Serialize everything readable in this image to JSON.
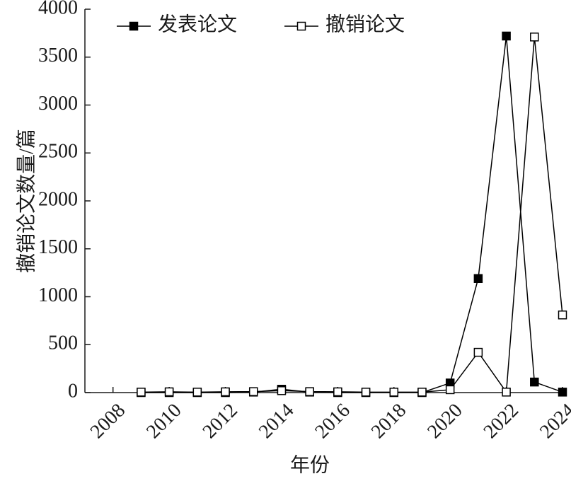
{
  "chart_data": {
    "type": "line",
    "x_label": "年份",
    "y_label": "撤销论文数量/篇",
    "x": [
      2009,
      2010,
      2011,
      2012,
      2013,
      2014,
      2015,
      2016,
      2017,
      2018,
      2019,
      2020,
      2021,
      2022,
      2023,
      2024
    ],
    "series": [
      {
        "name": "发表论文",
        "color": "#000000",
        "marker": "filled",
        "values": [
          0,
          0,
          0,
          0,
          5,
          35,
          5,
          0,
          0,
          0,
          0,
          100,
          1190,
          3720,
          110,
          5
        ]
      },
      {
        "name": "撤销论文",
        "color": "#000000",
        "marker": "hollow",
        "values": [
          5,
          8,
          5,
          8,
          10,
          20,
          10,
          8,
          5,
          5,
          5,
          30,
          420,
          5,
          3710,
          810
        ]
      }
    ],
    "xlim": [
      2007,
      2024
    ],
    "ylim": [
      0,
      4000
    ],
    "xticks": [
      2008,
      2010,
      2012,
      2014,
      2016,
      2018,
      2020,
      2022,
      2024
    ],
    "yticks": [
      0,
      500,
      1000,
      1500,
      2000,
      2500,
      3000,
      3500,
      4000
    ],
    "legend": "top-left"
  }
}
